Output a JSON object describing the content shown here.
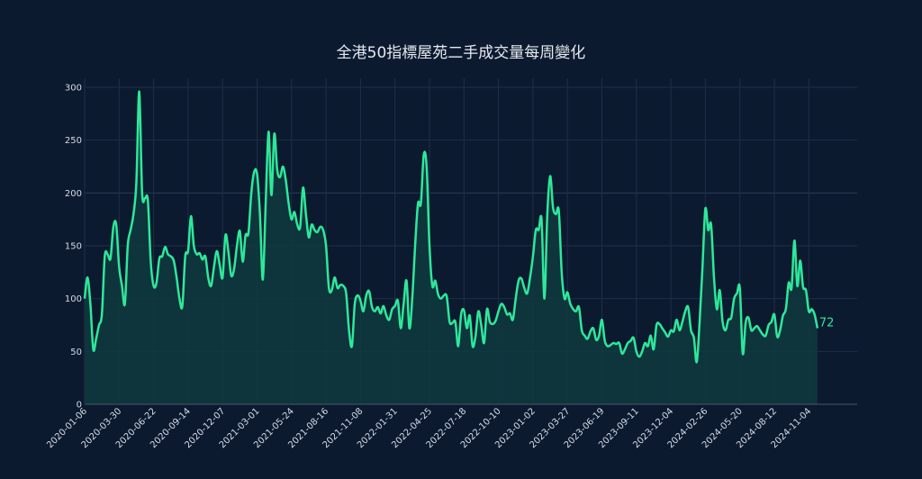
{
  "chart_data": {
    "type": "area",
    "title": "全港50指標屋苑二手成交量每周變化",
    "xlabel": "",
    "ylabel": "",
    "ylim": [
      0,
      300
    ],
    "yticks": [
      0,
      50,
      100,
      150,
      200,
      250,
      300
    ],
    "xtick_labels": [
      "2020-01-06",
      "2020-03-30",
      "2020-06-22",
      "2020-09-14",
      "2020-12-07",
      "2021-03-01",
      "2021-05-24",
      "2021-08-16",
      "2021-11-08",
      "2022-01-31",
      "2022-04-25",
      "2022-07-18",
      "2022-10-10",
      "2023-01-02",
      "2023-03-27",
      "2023-06-19",
      "2023-09-11",
      "2023-12-04",
      "2024-02-26",
      "2024-05-20",
      "2024-08-12",
      "2024-11-04"
    ],
    "grid": true,
    "legend": false,
    "line_color": "#2de89a",
    "fill_color": "#0f3a3e",
    "last_value_label": "72",
    "x_start": "2020-01-06",
    "x_step": "1 week",
    "values": [
      100,
      120,
      95,
      52,
      62,
      75,
      85,
      140,
      142,
      138,
      168,
      170,
      130,
      112,
      95,
      150,
      165,
      180,
      210,
      296,
      200,
      195,
      193,
      135,
      112,
      115,
      138,
      140,
      149,
      142,
      140,
      136,
      120,
      100,
      93,
      140,
      145,
      178,
      150,
      142,
      143,
      137,
      140,
      120,
      112,
      130,
      145,
      132,
      120,
      160,
      145,
      122,
      128,
      150,
      164,
      135,
      160,
      162,
      200,
      220,
      218,
      180,
      118,
      190,
      258,
      198,
      256,
      222,
      215,
      225,
      212,
      190,
      175,
      182,
      170,
      168,
      205,
      180,
      158,
      170,
      165,
      163,
      168,
      165,
      150,
      110,
      108,
      120,
      110,
      113,
      112,
      105,
      70,
      55,
      95,
      103,
      98,
      88,
      103,
      107,
      92,
      88,
      92,
      86,
      93,
      84,
      80,
      90,
      93,
      98,
      72,
      95,
      117,
      72,
      100,
      150,
      190,
      190,
      236,
      225,
      150,
      112,
      117,
      104,
      100,
      103,
      102,
      78,
      77,
      78,
      55,
      85,
      89,
      72,
      84,
      55,
      64,
      88,
      75,
      58,
      90,
      78,
      76,
      79,
      88,
      95,
      92,
      85,
      86,
      80,
      100,
      117,
      119,
      110,
      105,
      120,
      140,
      165,
      165,
      175,
      100,
      180,
      216,
      186,
      180,
      183,
      125,
      100,
      106,
      95,
      90,
      88,
      92,
      70,
      65,
      62,
      69,
      72,
      61,
      65,
      80,
      60,
      55,
      56,
      58,
      57,
      58,
      48,
      52,
      58,
      60,
      63,
      50,
      45,
      50,
      58,
      55,
      65,
      52,
      75,
      76,
      72,
      68,
      64,
      70,
      69,
      80,
      70,
      78,
      88,
      92,
      70,
      63,
      40,
      78,
      130,
      185,
      165,
      170,
      120,
      90,
      108,
      78,
      70,
      80,
      82,
      100,
      105,
      110,
      48,
      77,
      82,
      70,
      72,
      74,
      70,
      66,
      65,
      75,
      78,
      85,
      64,
      70,
      84,
      90,
      115,
      110,
      155,
      112,
      136,
      111,
      108,
      88,
      90,
      85,
      72
    ]
  }
}
